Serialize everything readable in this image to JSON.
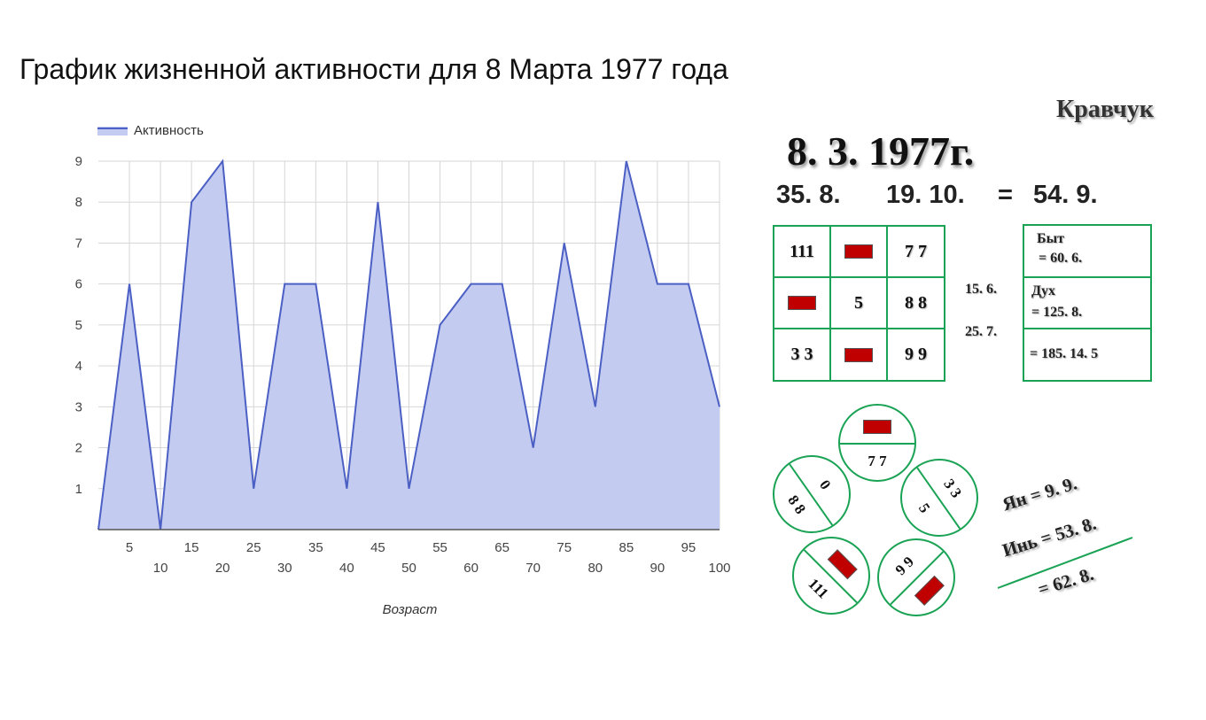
{
  "page": {
    "title": "График жизненной активности для 8 Марта 1977 года"
  },
  "chart_data": {
    "type": "area",
    "xlabel": "Возраст",
    "ylabel": "",
    "xlim": [
      0,
      100
    ],
    "ylim": [
      0,
      9
    ],
    "legend": {
      "position": "top-left"
    },
    "grid": true,
    "colors": {
      "line": "#4b5fc4",
      "fill": "#c3ccf0"
    },
    "x": [
      0,
      5,
      10,
      15,
      20,
      25,
      30,
      35,
      40,
      45,
      50,
      55,
      60,
      65,
      70,
      75,
      80,
      85,
      90,
      95,
      100
    ],
    "series": [
      {
        "name": "Активность",
        "values": [
          0,
          6,
          0,
          8,
          9,
          1,
          6,
          6,
          1,
          8,
          1,
          5,
          6,
          6,
          2,
          7,
          3,
          9,
          6,
          6,
          3
        ]
      }
    ],
    "yticks": [
      "1",
      "2",
      "3",
      "4",
      "5",
      "6",
      "7",
      "8",
      "9"
    ],
    "xticks": [
      "5",
      "10",
      "15",
      "20",
      "25",
      "30",
      "35",
      "40",
      "45",
      "50",
      "55",
      "60",
      "65",
      "70",
      "75",
      "80",
      "85",
      "90",
      "95",
      "100"
    ]
  },
  "panel": {
    "author": "Кравчук",
    "date": "8. 3. 1977г.",
    "sum_a": "35. 8.",
    "sum_b": "19. 10.",
    "eq": "=",
    "sum_total": "54. 9.",
    "matrix": [
      [
        "111",
        "",
        "7 7"
      ],
      [
        "",
        "5",
        "8 8"
      ],
      [
        "3 3",
        "",
        "9 9"
      ]
    ],
    "side_labels": [
      "15. 6.",
      "25. 7."
    ],
    "byt_label": "Быт",
    "byt_value": "=  60. 6.",
    "dukh_label": "Дух",
    "dukh_value": "= 125. 8.",
    "total_value": "=  185. 14. 5",
    "circles": [
      {
        "top": "",
        "bottom": "7 7"
      },
      {
        "top": "0",
        "bottom": "8 8"
      },
      {
        "top": "3 3",
        "bottom": "5"
      },
      {
        "top": "",
        "bottom": "111"
      },
      {
        "top": "9 9",
        "bottom": ""
      }
    ],
    "yan": "Ян =  9. 9.",
    "yin": "Инь =  53. 8.",
    "yin_yan_total": "=  62. 8.",
    "colors": {
      "green": "#1aa354",
      "marker": "#c00000"
    }
  }
}
